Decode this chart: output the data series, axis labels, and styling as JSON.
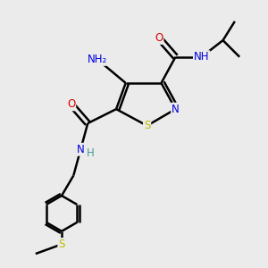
{
  "background_color": "#ebebeb",
  "atom_colors": {
    "C": "#000000",
    "N": "#0000dd",
    "O": "#dd0000",
    "S": "#bbbb00",
    "H": "#4a9999"
  },
  "bond_color": "#000000",
  "bond_width": 1.8,
  "font_size": 8.5
}
